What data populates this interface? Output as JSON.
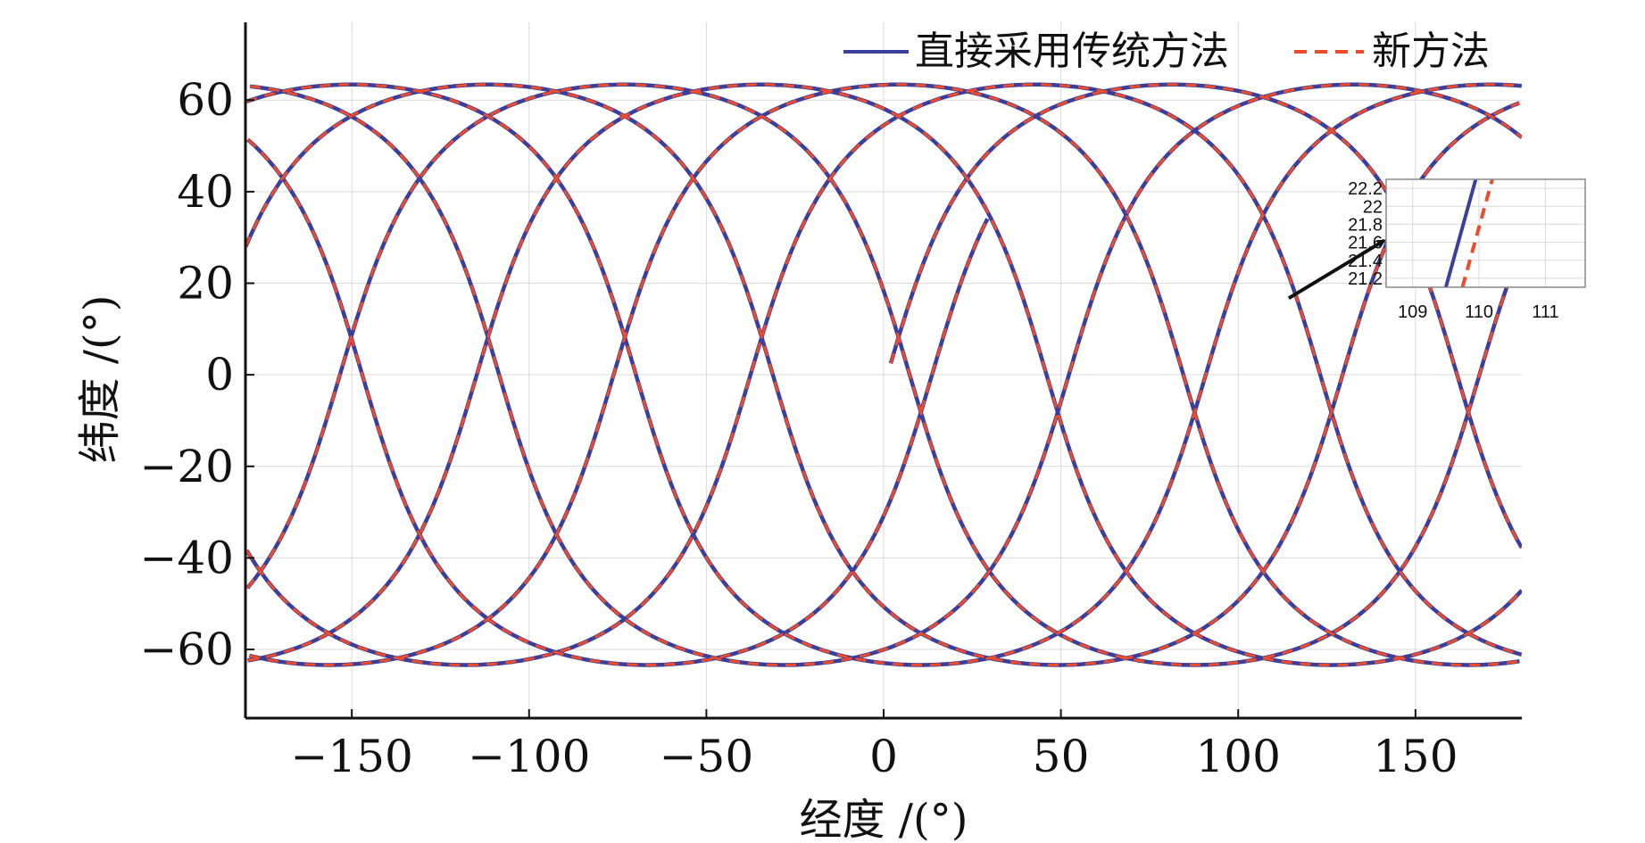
{
  "chart_data": {
    "type": "line",
    "title": "",
    "xlabel": "经度 /(°)",
    "ylabel": "纬度 /(°)",
    "xlim": [
      -180,
      180
    ],
    "ylim": [
      -75,
      77
    ],
    "xticks": [
      -150,
      -100,
      -50,
      0,
      50,
      100,
      150
    ],
    "yticks": [
      -60,
      -40,
      -20,
      0,
      20,
      40,
      60
    ],
    "xtick_labels": [
      "−150",
      "−100",
      "−50",
      "0",
      "50",
      "100",
      "150"
    ],
    "ytick_labels": [
      "−60",
      "−40",
      "−20",
      "0",
      "20",
      "40",
      "60"
    ],
    "grid": true,
    "legend_position": "top-right",
    "colors": {
      "traditional": "#3a3f9c",
      "new": "#ee4b2b",
      "grid": "#d9d9d9",
      "axis": "#111111"
    },
    "series": [
      {
        "name": "直接采用传统方法",
        "style": "solid"
      },
      {
        "name": "新方法",
        "style": "dashed"
      }
    ],
    "ground_track": {
      "inclination_deg": 63.4,
      "start_lon_deg": 2,
      "start_lat_deg": 2.5,
      "end_lon_deg": 74,
      "end_lat_deg": 26,
      "westward_drift_per_rev_deg": 38.6,
      "revolutions": 9.1
    },
    "inset": {
      "xlim": [
        108.6,
        111.6
      ],
      "ylim": [
        21.1,
        22.3
      ],
      "xticks": [
        109,
        110,
        111
      ],
      "yticks": [
        21.2,
        21.4,
        21.6,
        21.8,
        22,
        22.2
      ],
      "xtick_labels": [
        "109",
        "110",
        "111"
      ],
      "ytick_labels": [
        "21.2",
        "21.4",
        "21.6",
        "21.8",
        "22",
        "22.2"
      ],
      "traditional_line": [
        [
          109.5,
          21.1
        ],
        [
          109.95,
          22.3
        ]
      ],
      "new_line": [
        [
          109.75,
          21.1
        ],
        [
          110.2,
          22.3
        ]
      ],
      "pointer_target": [
        113,
        21.6
      ]
    }
  }
}
